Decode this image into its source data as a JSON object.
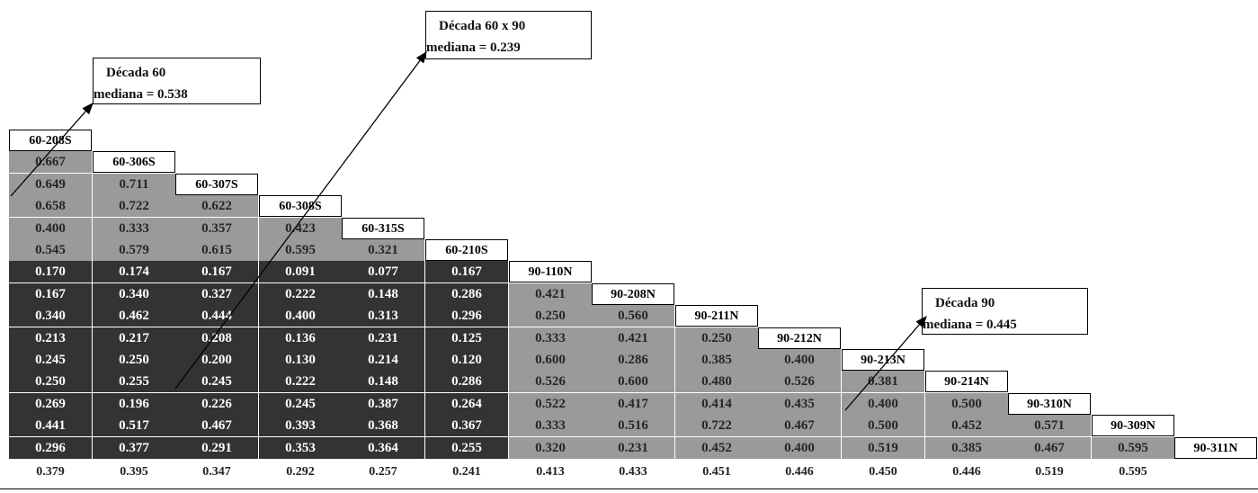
{
  "headers": [
    "60-208S",
    "60-306S",
    "60-307S",
    "60-308S",
    "60-315S",
    "60-210S",
    "90-110N",
    "90-208N",
    "90-211N",
    "90-212N",
    "90-213N",
    "90-214N",
    "90-310N",
    "90-309N",
    "90-311N"
  ],
  "rows": [
    [
      "0.667"
    ],
    [
      "0.649",
      "0.711"
    ],
    [
      "0.658",
      "0.722",
      "0.622"
    ],
    [
      "0.400",
      "0.333",
      "0.357",
      "0.423"
    ],
    [
      "0.545",
      "0.579",
      "0.615",
      "0.595",
      "0.321"
    ],
    [
      "0.170",
      "0.174",
      "0.167",
      "0.091",
      "0.077",
      "0.167"
    ],
    [
      "0.167",
      "0.340",
      "0.327",
      "0.222",
      "0.148",
      "0.286",
      "0.421"
    ],
    [
      "0.340",
      "0.462",
      "0.444",
      "0.400",
      "0.313",
      "0.296",
      "0.250",
      "0.560"
    ],
    [
      "0.213",
      "0.217",
      "0.208",
      "0.136",
      "0.231",
      "0.125",
      "0.333",
      "0.421",
      "0.250"
    ],
    [
      "0.245",
      "0.250",
      "0.200",
      "0.130",
      "0.214",
      "0.120",
      "0.600",
      "0.286",
      "0.385",
      "0.400"
    ],
    [
      "0.250",
      "0.255",
      "0.245",
      "0.222",
      "0.148",
      "0.286",
      "0.526",
      "0.600",
      "0.480",
      "0.526",
      "0.381"
    ],
    [
      "0.269",
      "0.196",
      "0.226",
      "0.245",
      "0.387",
      "0.264",
      "0.522",
      "0.417",
      "0.414",
      "0.435",
      "0.400",
      "0.500"
    ],
    [
      "0.441",
      "0.517",
      "0.467",
      "0.393",
      "0.368",
      "0.367",
      "0.333",
      "0.516",
      "0.722",
      "0.467",
      "0.500",
      "0.452",
      "0.571"
    ],
    [
      "0.296",
      "0.377",
      "0.291",
      "0.353",
      "0.364",
      "0.255",
      "0.320",
      "0.231",
      "0.452",
      "0.400",
      "0.519",
      "0.385",
      "0.467",
      "0.595"
    ]
  ],
  "medians": [
    "0.379",
    "0.395",
    "0.347",
    "0.292",
    "0.257",
    "0.241",
    "0.413",
    "0.433",
    "0.451",
    "0.446",
    "0.450",
    "0.446",
    "0.519",
    "0.595"
  ],
  "boxes": [
    {
      "title": "Década   60",
      "median": "mediana = 0.538"
    },
    {
      "title": "Década   60 x 90",
      "median": "mediana =  0.239"
    },
    {
      "title": "Década   90",
      "median": "mediana = 0.445"
    }
  ],
  "colors": {
    "light_gray": "#9a9a9a",
    "dark_gray": "#333333"
  }
}
